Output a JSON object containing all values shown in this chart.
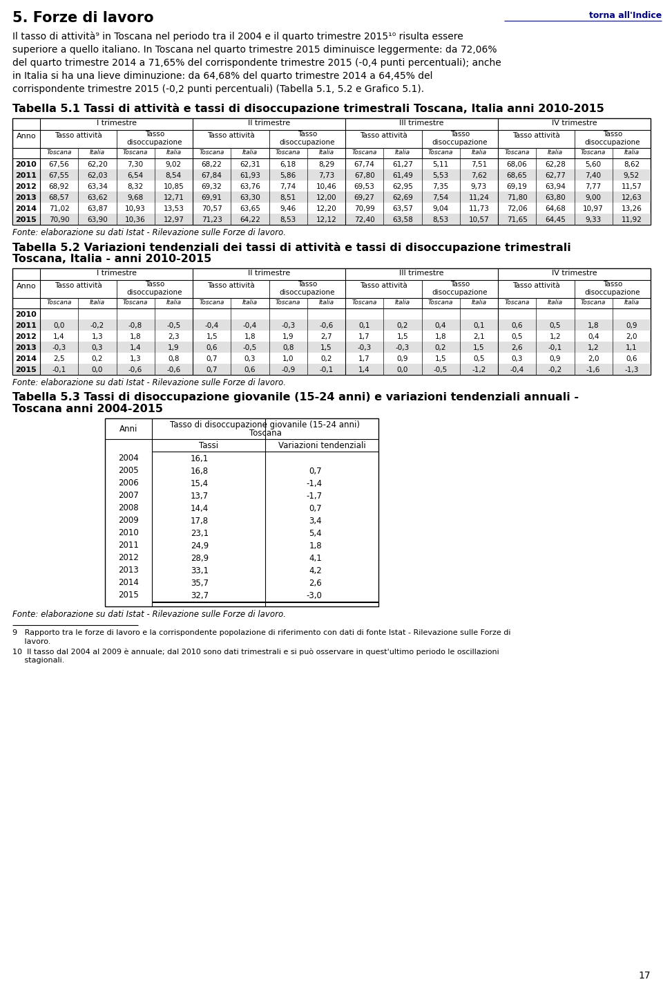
{
  "title_section": "5. Forze di lavoro",
  "torna_text": "torna all'Indice",
  "fonte_text": "Fonte: elaborazione su dati Istat - Rilevazione sulle Forze di lavoro.",
  "footnote9": "9   Rapporto tra le forze di lavoro e la corrispondente popolazione di riferimento con dati di fonte Istat - Rilevazione sulle Forze di lavoro.",
  "footnote9b": "     lavoro.",
  "footnote10": "10  Il tasso dal 2004 al 2009 è annuale; dal 2010 sono dati trimestrali e si può osservare in quest'ultimo periodo le oscillazioni",
  "footnote10b": "     stagionali.",
  "page_num": "17",
  "table1_title": "Tabella 5.1 Tassi di attività e tassi di disoccupazione trimestrali Toscana, Italia anni 2010-2015",
  "table2_title_line1": "Tabella 5.2 Variazioni tendenziali dei tassi di attività e tassi di disoccupazione trimestrali",
  "table2_title_line2": "Toscana, Italia - anni 2010-2015",
  "table3_title_line1": "Tabella 5.3 Tassi di disoccupazione giovanile (15-24 anni) e variazioni tendenziali annuali -",
  "table3_title_line2": "Toscana anni 2004-2015",
  "quarters": [
    "I trimestre",
    "II trimestre",
    "III trimestre",
    "IV trimestre"
  ],
  "table1_data": [
    [
      "2010",
      "67,56",
      "62,20",
      "7,30",
      "9,02",
      "68,22",
      "62,31",
      "6,18",
      "8,29",
      "67,74",
      "61,27",
      "5,11",
      "7,51",
      "68,06",
      "62,28",
      "5,60",
      "8,62"
    ],
    [
      "2011",
      "67,55",
      "62,03",
      "6,54",
      "8,54",
      "67,84",
      "61,93",
      "5,86",
      "7,73",
      "67,80",
      "61,49",
      "5,53",
      "7,62",
      "68,65",
      "62,77",
      "7,40",
      "9,52"
    ],
    [
      "2012",
      "68,92",
      "63,34",
      "8,32",
      "10,85",
      "69,32",
      "63,76",
      "7,74",
      "10,46",
      "69,53",
      "62,95",
      "7,35",
      "9,73",
      "69,19",
      "63,94",
      "7,77",
      "11,57"
    ],
    [
      "2013",
      "68,57",
      "63,62",
      "9,68",
      "12,71",
      "69,91",
      "63,30",
      "8,51",
      "12,00",
      "69,27",
      "62,69",
      "7,54",
      "11,24",
      "71,80",
      "63,80",
      "9,00",
      "12,63"
    ],
    [
      "2014",
      "71,02",
      "63,87",
      "10,93",
      "13,53",
      "70,57",
      "63,65",
      "9,46",
      "12,20",
      "70,99",
      "63,57",
      "9,04",
      "11,73",
      "72,06",
      "64,68",
      "10,97",
      "13,26"
    ],
    [
      "2015",
      "70,90",
      "63,90",
      "10,36",
      "12,97",
      "71,23",
      "64,22",
      "8,53",
      "12,12",
      "72,40",
      "63,58",
      "8,53",
      "10,57",
      "71,65",
      "64,45",
      "9,33",
      "11,92"
    ]
  ],
  "table2_data": [
    [
      "2010",
      "",
      "",
      "",
      "",
      "",
      "",
      "",
      "",
      "",
      "",
      "",
      "",
      "",
      "",
      "",
      ""
    ],
    [
      "2011",
      "0,0",
      "-0,2",
      "-0,8",
      "-0,5",
      "-0,4",
      "-0,4",
      "-0,3",
      "-0,6",
      "0,1",
      "0,2",
      "0,4",
      "0,1",
      "0,6",
      "0,5",
      "1,8",
      "0,9"
    ],
    [
      "2012",
      "1,4",
      "1,3",
      "1,8",
      "2,3",
      "1,5",
      "1,8",
      "1,9",
      "2,7",
      "1,7",
      "1,5",
      "1,8",
      "2,1",
      "0,5",
      "1,2",
      "0,4",
      "2,0"
    ],
    [
      "2013",
      "-0,3",
      "0,3",
      "1,4",
      "1,9",
      "0,6",
      "-0,5",
      "0,8",
      "1,5",
      "-0,3",
      "-0,3",
      "0,2",
      "1,5",
      "2,6",
      "-0,1",
      "1,2",
      "1,1"
    ],
    [
      "2014",
      "2,5",
      "0,2",
      "1,3",
      "0,8",
      "0,7",
      "0,3",
      "1,0",
      "0,2",
      "1,7",
      "0,9",
      "1,5",
      "0,5",
      "0,3",
      "0,9",
      "2,0",
      "0,6"
    ],
    [
      "2015",
      "-0,1",
      "0,0",
      "-0,6",
      "-0,6",
      "0,7",
      "0,6",
      "-0,9",
      "-0,1",
      "1,4",
      "0,0",
      "-0,5",
      "-1,2",
      "-0,4",
      "-0,2",
      "-1,6",
      "-1,3"
    ]
  ],
  "table3_data": [
    [
      "2004",
      "16,1",
      ""
    ],
    [
      "2005",
      "16,8",
      "0,7"
    ],
    [
      "2006",
      "15,4",
      "-1,4"
    ],
    [
      "2007",
      "13,7",
      "-1,7"
    ],
    [
      "2008",
      "14,4",
      "0,7"
    ],
    [
      "2009",
      "17,8",
      "3,4"
    ],
    [
      "2010",
      "23,1",
      "5,4"
    ],
    [
      "2011",
      "24,9",
      "1,8"
    ],
    [
      "2012",
      "28,9",
      "4,1"
    ],
    [
      "2013",
      "33,1",
      "4,2"
    ],
    [
      "2014",
      "35,7",
      "2,6"
    ],
    [
      "2015",
      "32,7",
      "-3,0"
    ]
  ]
}
